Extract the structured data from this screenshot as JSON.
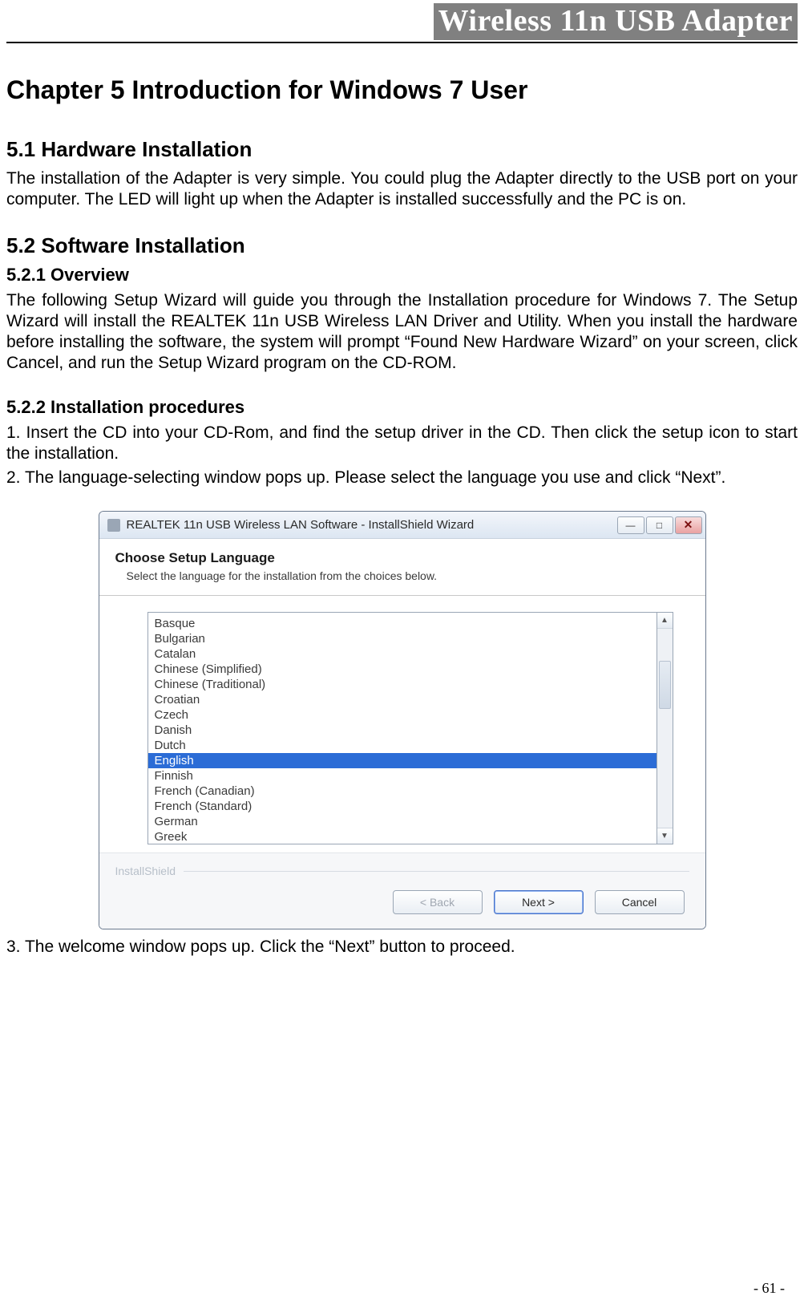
{
  "header": {
    "product_title": "Wireless 11n USB Adapter"
  },
  "chapter": {
    "title": "Chapter 5   Introduction for Windows 7 User"
  },
  "sections": {
    "hw": {
      "title": "5.1 Hardware Installation",
      "body": "The installation of the Adapter is very simple. You could plug the Adapter directly to the USB port on your computer. The LED will light up when the Adapter is installed successfully and the PC is on."
    },
    "sw": {
      "title": "5.2 Software Installation",
      "overview_title": "5.2.1 Overview",
      "overview_body": "The following Setup Wizard will guide you through the Installation procedure for Windows 7. The Setup Wizard will install the REALTEK 11n USB Wireless LAN Driver and Utility. When you install the hardware before installing the software, the system will prompt “Found New Hardware Wizard” on your screen, click Cancel, and run the Setup Wizard program on the CD-ROM.",
      "proc_title": "5.2.2 Installation procedures",
      "proc_step1": "1. Insert the CD into your CD-Rom, and find the setup driver in the CD. Then click the setup icon to start the installation.",
      "proc_step2": "2. The language-selecting window pops up. Please select the language you use and click “Next”.",
      "proc_step3": "3. The welcome window pops up. Click the “Next” button to proceed."
    }
  },
  "dialog": {
    "window_title": "REALTEK 11n USB Wireless LAN Software - InstallShield Wizard",
    "panel_title": "Choose Setup Language",
    "panel_sub": "Select the language for the installation from the choices below.",
    "languages": [
      "Basque",
      "Bulgarian",
      "Catalan",
      "Chinese (Simplified)",
      "Chinese (Traditional)",
      "Croatian",
      "Czech",
      "Danish",
      "Dutch",
      "English",
      "Finnish",
      "French (Canadian)",
      "French (Standard)",
      "German",
      "Greek"
    ],
    "selected_index": 9,
    "footer_brand": "InstallShield",
    "buttons": {
      "back": "< Back",
      "next": "Next >",
      "cancel": "Cancel"
    },
    "colors": {
      "selection_bg": "#2b6cd6",
      "selection_fg": "#ffffff",
      "titlebar_grad_top": "#f3f6fb",
      "titlebar_grad_bottom": "#dce6f2",
      "close_grad_top": "#f8dcdc",
      "close_grad_bottom": "#e9a1a1"
    }
  },
  "page_number": "- 61 -"
}
